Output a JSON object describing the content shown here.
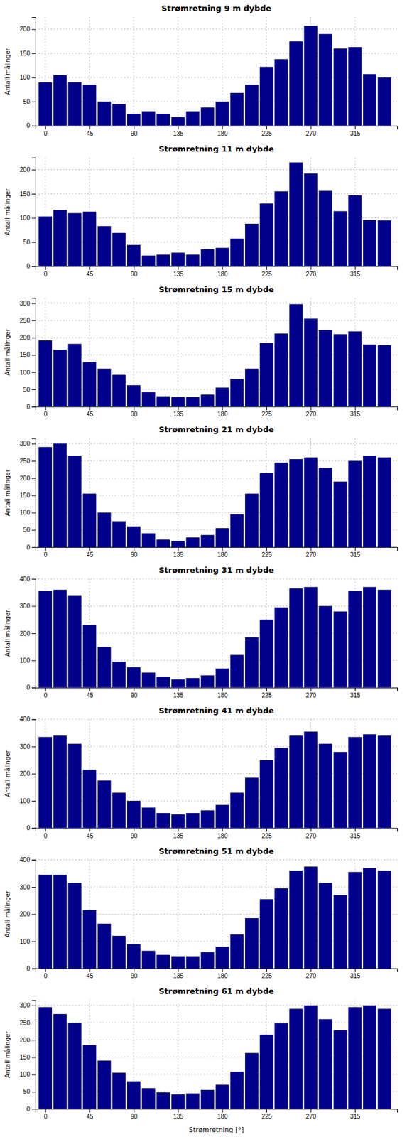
{
  "chart_data": [
    {
      "type": "bar",
      "title": "Strømretning 9 m dybde",
      "ylabel": "Antall målinger",
      "color": "#00008B",
      "grid": true,
      "x": [
        0,
        15,
        30,
        45,
        60,
        75,
        90,
        105,
        120,
        135,
        150,
        165,
        180,
        195,
        210,
        225,
        240,
        255,
        270,
        285,
        300,
        315,
        330,
        345
      ],
      "values": [
        90,
        105,
        90,
        85,
        50,
        45,
        25,
        30,
        25,
        18,
        30,
        38,
        50,
        68,
        85,
        122,
        138,
        175,
        207,
        190,
        160,
        163,
        107,
        100
      ],
      "xlim": [
        -10,
        358
      ],
      "xticks": [
        0,
        45,
        90,
        135,
        180,
        225,
        270,
        315
      ],
      "ylim": [
        0,
        225
      ],
      "yticks": [
        0,
        50,
        100,
        150,
        200
      ]
    },
    {
      "type": "bar",
      "title": "Strømretning 11 m dybde",
      "ylabel": "Antall målinger",
      "color": "#00008B",
      "grid": true,
      "x": [
        0,
        15,
        30,
        45,
        60,
        75,
        90,
        105,
        120,
        135,
        150,
        165,
        180,
        195,
        210,
        225,
        240,
        255,
        270,
        285,
        300,
        315,
        330,
        345
      ],
      "values": [
        103,
        117,
        110,
        113,
        83,
        69,
        44,
        22,
        24,
        28,
        24,
        35,
        38,
        57,
        88,
        130,
        155,
        215,
        192,
        156,
        114,
        147,
        96,
        95
      ],
      "xlim": [
        -10,
        358
      ],
      "xticks": [
        0,
        45,
        90,
        135,
        180,
        225,
        270,
        315
      ],
      "ylim": [
        0,
        225
      ],
      "yticks": [
        0,
        50,
        100,
        150,
        200
      ]
    },
    {
      "type": "bar",
      "title": "Strømretning 15 m dybde",
      "ylabel": "Antall målinger",
      "color": "#00008B",
      "grid": true,
      "x": [
        0,
        15,
        30,
        45,
        60,
        75,
        90,
        105,
        120,
        135,
        150,
        165,
        180,
        195,
        210,
        225,
        240,
        255,
        270,
        285,
        300,
        315,
        330,
        345
      ],
      "values": [
        192,
        165,
        182,
        130,
        110,
        92,
        62,
        42,
        30,
        28,
        28,
        35,
        55,
        80,
        110,
        185,
        212,
        297,
        255,
        222,
        210,
        218,
        180,
        178
      ],
      "xlim": [
        -10,
        358
      ],
      "xticks": [
        0,
        45,
        90,
        135,
        180,
        225,
        270,
        315
      ],
      "ylim": [
        0,
        315
      ],
      "yticks": [
        0,
        50,
        100,
        150,
        200,
        250,
        300
      ]
    },
    {
      "type": "bar",
      "title": "Strømretning 21 m dybde",
      "ylabel": "Antall målinger",
      "color": "#00008B",
      "grid": true,
      "x": [
        0,
        15,
        30,
        45,
        60,
        75,
        90,
        105,
        120,
        135,
        150,
        165,
        180,
        195,
        210,
        225,
        240,
        255,
        270,
        285,
        300,
        315,
        330,
        345
      ],
      "values": [
        290,
        300,
        265,
        155,
        100,
        75,
        60,
        40,
        22,
        18,
        28,
        35,
        55,
        95,
        155,
        215,
        245,
        255,
        260,
        230,
        190,
        250,
        265,
        260
      ],
      "xlim": [
        -10,
        358
      ],
      "xticks": [
        0,
        45,
        90,
        135,
        180,
        225,
        270,
        315
      ],
      "ylim": [
        0,
        315
      ],
      "yticks": [
        0,
        50,
        100,
        150,
        200,
        250,
        300
      ]
    },
    {
      "type": "bar",
      "title": "Strømretning 31 m dybde",
      "ylabel": "Antall målinger",
      "color": "#00008B",
      "grid": true,
      "x": [
        0,
        15,
        30,
        45,
        60,
        75,
        90,
        105,
        120,
        135,
        150,
        165,
        180,
        195,
        210,
        225,
        240,
        255,
        270,
        285,
        300,
        315,
        330,
        345
      ],
      "values": [
        355,
        360,
        340,
        230,
        150,
        95,
        75,
        55,
        40,
        30,
        35,
        45,
        70,
        120,
        185,
        250,
        295,
        365,
        370,
        300,
        280,
        355,
        370,
        360
      ],
      "xlim": [
        -10,
        358
      ],
      "xticks": [
        0,
        45,
        90,
        135,
        180,
        225,
        270,
        315
      ],
      "ylim": [
        0,
        400
      ],
      "yticks": [
        0,
        100,
        200,
        300,
        400
      ]
    },
    {
      "type": "bar",
      "title": "Strømretning 41 m dybde",
      "ylabel": "Antall målinger",
      "color": "#00008B",
      "grid": true,
      "x": [
        0,
        15,
        30,
        45,
        60,
        75,
        90,
        105,
        120,
        135,
        150,
        165,
        180,
        195,
        210,
        225,
        240,
        255,
        270,
        285,
        300,
        315,
        330,
        345
      ],
      "values": [
        335,
        340,
        310,
        215,
        175,
        130,
        100,
        75,
        55,
        50,
        55,
        65,
        85,
        130,
        185,
        250,
        295,
        340,
        355,
        310,
        280,
        335,
        345,
        340
      ],
      "xlim": [
        -10,
        358
      ],
      "xticks": [
        0,
        45,
        90,
        135,
        180,
        225,
        270,
        315
      ],
      "ylim": [
        0,
        400
      ],
      "yticks": [
        0,
        100,
        200,
        300,
        400
      ]
    },
    {
      "type": "bar",
      "title": "Strømretning 51 m dybde",
      "ylabel": "Antall målinger",
      "color": "#00008B",
      "grid": true,
      "x": [
        0,
        15,
        30,
        45,
        60,
        75,
        90,
        105,
        120,
        135,
        150,
        165,
        180,
        195,
        210,
        225,
        240,
        255,
        270,
        285,
        300,
        315,
        330,
        345
      ],
      "values": [
        345,
        345,
        315,
        215,
        165,
        120,
        90,
        65,
        50,
        45,
        45,
        60,
        80,
        125,
        185,
        255,
        295,
        360,
        375,
        315,
        270,
        355,
        370,
        360
      ],
      "xlim": [
        -10,
        358
      ],
      "xticks": [
        0,
        45,
        90,
        135,
        180,
        225,
        270,
        315
      ],
      "ylim": [
        0,
        400
      ],
      "yticks": [
        0,
        100,
        200,
        300,
        400
      ]
    },
    {
      "type": "bar",
      "title": "Strømretning 61 m dybde",
      "ylabel": "Antall målinger",
      "xlabel": "Strømretning [°]",
      "color": "#00008B",
      "grid": true,
      "x": [
        0,
        15,
        30,
        45,
        60,
        75,
        90,
        105,
        120,
        135,
        150,
        165,
        180,
        195,
        210,
        225,
        240,
        255,
        270,
        285,
        300,
        315,
        330,
        345
      ],
      "values": [
        295,
        275,
        250,
        185,
        140,
        105,
        80,
        60,
        48,
        42,
        45,
        55,
        70,
        108,
        162,
        215,
        248,
        290,
        300,
        260,
        228,
        295,
        300,
        290
      ],
      "xlim": [
        -10,
        358
      ],
      "xticks": [
        0,
        45,
        90,
        135,
        180,
        225,
        270,
        315
      ],
      "ylim": [
        0,
        315
      ],
      "yticks": [
        0,
        50,
        100,
        150,
        200,
        250,
        300
      ]
    }
  ]
}
